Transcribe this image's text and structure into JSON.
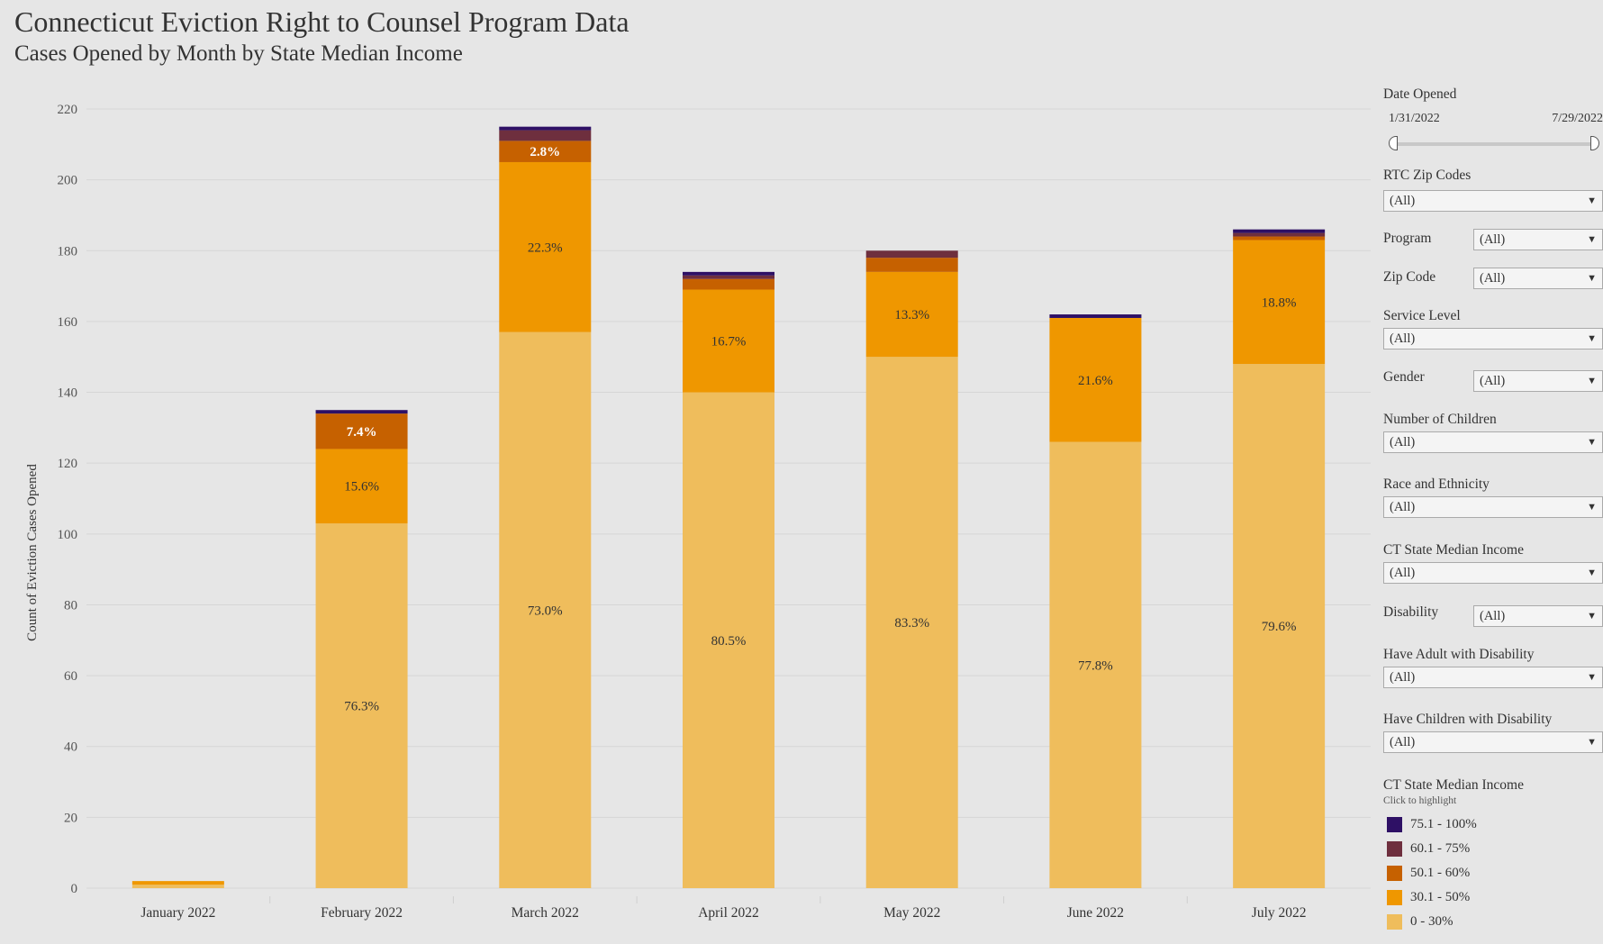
{
  "header": {
    "title": "Connecticut Eviction Right to Counsel Program Data",
    "subtitle": "Cases Opened by Month by State Median Income"
  },
  "colors": {
    "0-30": "#efbd5c",
    "30.1-50": "#ef9700",
    "50.1-60": "#c66100",
    "60.1-75": "#6e2f3e",
    "75.1-100": "#2e1065"
  },
  "chart_data": {
    "type": "bar",
    "stacked": true,
    "ylabel": "Count of Eviction Cases Opened",
    "xlabel": "",
    "ylim": [
      0,
      220
    ],
    "yticks": [
      0,
      20,
      40,
      60,
      80,
      100,
      120,
      140,
      160,
      180,
      200,
      220
    ],
    "grid": true,
    "categories": [
      "January 2022",
      "February 2022",
      "March 2022",
      "April 2022",
      "May 2022",
      "June 2022",
      "July 2022"
    ],
    "series": [
      {
        "name": "0 - 30%",
        "color": "#efbd5c",
        "values": [
          1,
          103,
          157,
          140,
          150,
          126,
          148
        ]
      },
      {
        "name": "30.1 - 50%",
        "color": "#ef9700",
        "values": [
          1,
          21,
          48,
          29,
          24,
          35,
          35
        ]
      },
      {
        "name": "50.1 - 60%",
        "color": "#c66100",
        "values": [
          0,
          10,
          6,
          3,
          4,
          0,
          1
        ]
      },
      {
        "name": "60.1 - 75%",
        "color": "#6e2f3e",
        "values": [
          0,
          0,
          3,
          1,
          2,
          0,
          1
        ]
      },
      {
        "name": "75.1 - 100%",
        "color": "#2e1065",
        "values": [
          0,
          1,
          1,
          1,
          0,
          1,
          1
        ]
      }
    ],
    "labels": [
      [
        null,
        "76.3%",
        "73.0%",
        "80.5%",
        "83.3%",
        "77.8%",
        "79.6%"
      ],
      [
        null,
        "15.6%",
        "22.3%",
        "16.7%",
        "13.3%",
        "21.6%",
        "18.8%"
      ],
      [
        null,
        "7.4%",
        "2.8%",
        null,
        null,
        null,
        null
      ],
      [
        null,
        null,
        null,
        null,
        null,
        null,
        null
      ],
      [
        null,
        null,
        null,
        null,
        null,
        null,
        null
      ]
    ]
  },
  "filters": {
    "date_opened": {
      "label": "Date Opened",
      "start": "1/31/2022",
      "end": "7/29/2022"
    },
    "rtc_zip_codes": {
      "label": "RTC Zip Codes",
      "value": "(All)"
    },
    "program": {
      "label": "Program",
      "value": "(All)"
    },
    "zip_code": {
      "label": "Zip Code",
      "value": "(All)"
    },
    "service_level": {
      "label": "Service Level",
      "value": "(All)"
    },
    "gender": {
      "label": "Gender",
      "value": "(All)"
    },
    "number_of_children": {
      "label": "Number of Children",
      "value": "(All)"
    },
    "race_ethnicity": {
      "label": "Race and Ethnicity",
      "value": "(All)"
    },
    "ct_state_median_income": {
      "label": "CT State Median Income",
      "value": "(All)"
    },
    "disability": {
      "label": "Disability",
      "value": "(All)"
    },
    "adult_disability": {
      "label": "Have Adult with Disability",
      "value": "(All)"
    },
    "children_disability": {
      "label": "Have Children with Disability",
      "value": "(All)"
    }
  },
  "legend": {
    "title": "CT State Median Income",
    "hint": "Click to highlight",
    "items": [
      {
        "label": "75.1 - 100%",
        "color": "#2e1065"
      },
      {
        "label": "60.1 - 75%",
        "color": "#6e2f3e"
      },
      {
        "label": "50.1 - 60%",
        "color": "#c66100"
      },
      {
        "label": "30.1 - 50%",
        "color": "#ef9700"
      },
      {
        "label": "0 - 30%",
        "color": "#efbd5c"
      }
    ]
  },
  "icons": {
    "dropdown": "caret-down-icon"
  }
}
